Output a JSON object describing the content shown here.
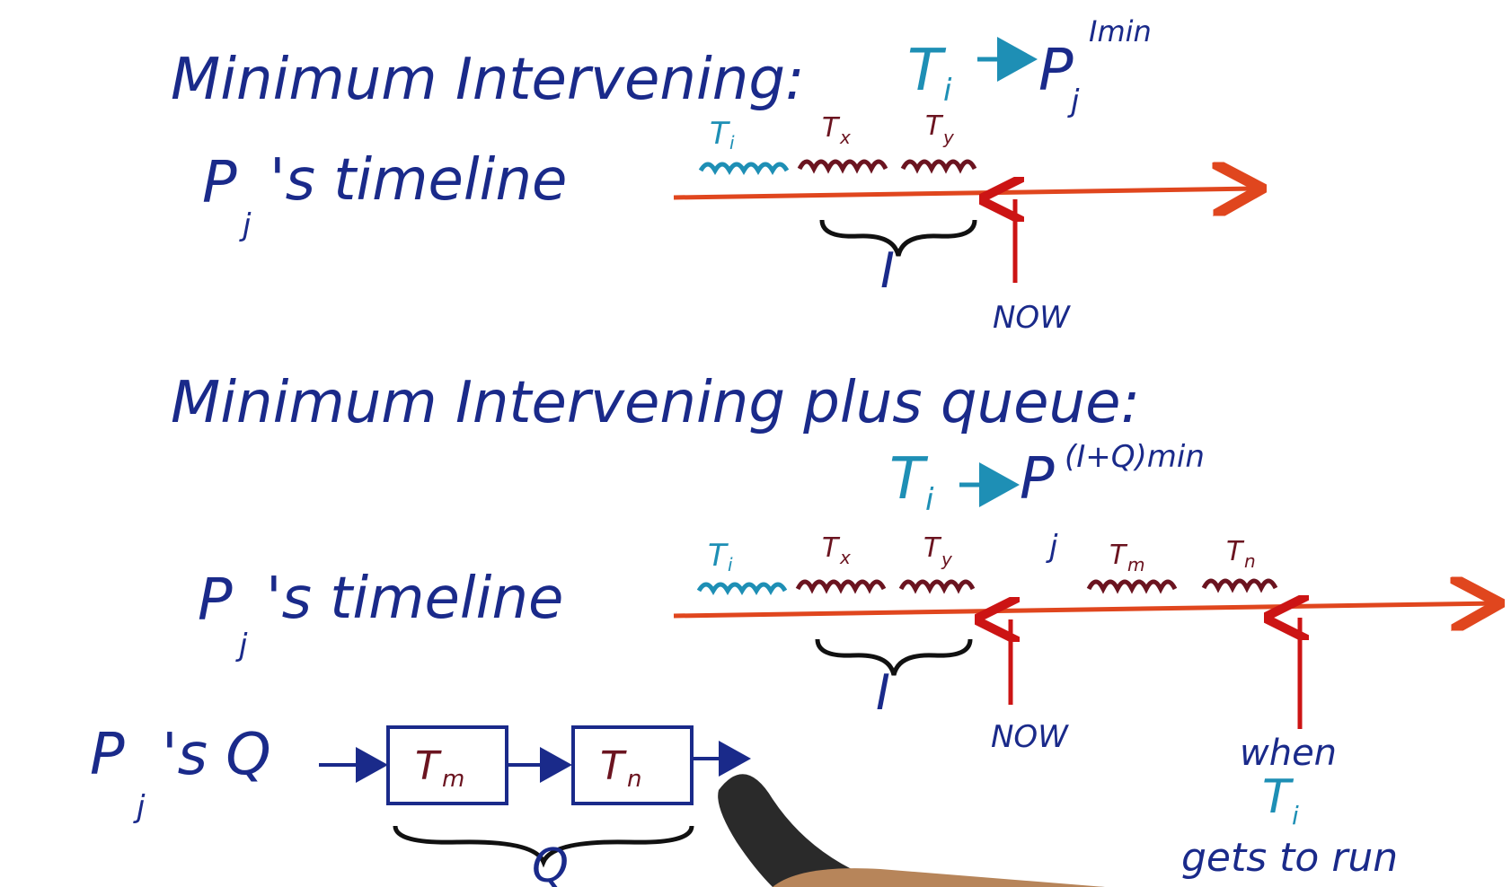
{
  "section1": {
    "heading": "Minimum Intervening:",
    "formula_T": "T",
    "formula_T_sub": "i",
    "formula_P": "P",
    "formula_P_sub": "j",
    "formula_P_sup": "Imin",
    "timeline_label": "P",
    "timeline_label_sub": "j",
    "timeline_label_rest": "'s timeline",
    "tasks": [
      {
        "name": "T",
        "sub": "i"
      },
      {
        "name": "T",
        "sub": "x"
      },
      {
        "name": "T",
        "sub": "y"
      }
    ],
    "brace_label": "I",
    "now_label": "NOW"
  },
  "section2": {
    "heading": "Minimum Intervening plus queue:",
    "formula_T": "T",
    "formula_T_sub": "i",
    "formula_P": "P",
    "formula_P_sub": "j",
    "formula_P_sup": "(I+Q)min",
    "timeline_label": "P",
    "timeline_label_sub": "j",
    "timeline_label_rest": "'s timeline",
    "tasks": [
      {
        "name": "T",
        "sub": "i"
      },
      {
        "name": "T",
        "sub": "x"
      },
      {
        "name": "T",
        "sub": "y"
      },
      {
        "name": "T",
        "sub": "m"
      },
      {
        "name": "T",
        "sub": "n"
      }
    ],
    "brace_label": "I",
    "now_label": "NOW",
    "when_line1": "when",
    "when_T": "T",
    "when_T_sub": "i",
    "when_line3": "gets to run"
  },
  "queue": {
    "label_P": "P",
    "label_P_sub": "j",
    "label_rest": "'s Q",
    "boxes": [
      {
        "name": "T",
        "sub": "m"
      },
      {
        "name": "T",
        "sub": "n"
      }
    ],
    "brace_label": "Q"
  },
  "colors": {
    "ink_blue": "#1a2a8a",
    "teal": "#1e8fb5",
    "maroon": "#6b1420",
    "timeline_orange": "#e0461e",
    "arrow_red": "#cc1414",
    "brace_black": "#111111"
  }
}
